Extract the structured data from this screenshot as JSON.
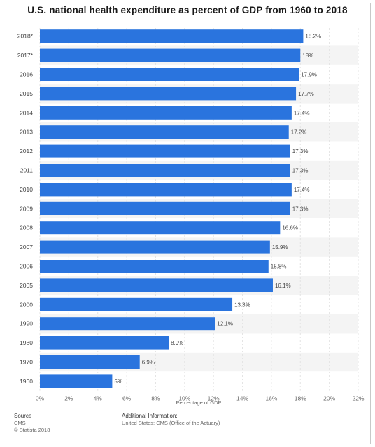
{
  "title": "U.S. national health expenditure as percent of GDP from 1960 to 2018",
  "footer": {
    "source_heading": "Source",
    "source_text": "CMS",
    "copyright": "© Statista 2018",
    "additional_heading": "Additional Information:",
    "additional_text": "United States; CMS (Office of the Actuary)"
  },
  "chart_data": {
    "type": "bar",
    "orientation": "horizontal",
    "title": "U.S. national health expenditure as percent of GDP from 1960 to 2018",
    "xlabel": "Percentage of GDP",
    "ylabel": "",
    "xlim": [
      0,
      22
    ],
    "ticks": [
      "0%",
      "2%",
      "4%",
      "6%",
      "8%",
      "10%",
      "12%",
      "14%",
      "16%",
      "18%",
      "20%",
      "22%"
    ],
    "tick_values": [
      0,
      2,
      4,
      6,
      8,
      10,
      12,
      14,
      16,
      18,
      20,
      22
    ],
    "categories": [
      "2018*",
      "2017*",
      "2016",
      "2015",
      "2014",
      "2013",
      "2012",
      "2011",
      "2010",
      "2009",
      "2008",
      "2007",
      "2006",
      "2005",
      "2000",
      "1990",
      "1980",
      "1970",
      "1960"
    ],
    "values": [
      18.2,
      18,
      17.9,
      17.7,
      17.4,
      17.2,
      17.3,
      17.3,
      17.4,
      17.3,
      16.6,
      15.9,
      15.8,
      16.1,
      13.3,
      12.1,
      8.9,
      6.9,
      5
    ],
    "value_labels": [
      "18.2%",
      "18%",
      "17.9%",
      "17.7%",
      "17.4%",
      "17.2%",
      "17.3%",
      "17.3%",
      "17.4%",
      "17.3%",
      "16.6%",
      "15.9%",
      "15.8%",
      "16.1%",
      "13.3%",
      "12.1%",
      "8.9%",
      "6.9%",
      "5%"
    ],
    "bar_color": "#2a74de",
    "band_color": "#f4f4f4",
    "grid": true
  }
}
